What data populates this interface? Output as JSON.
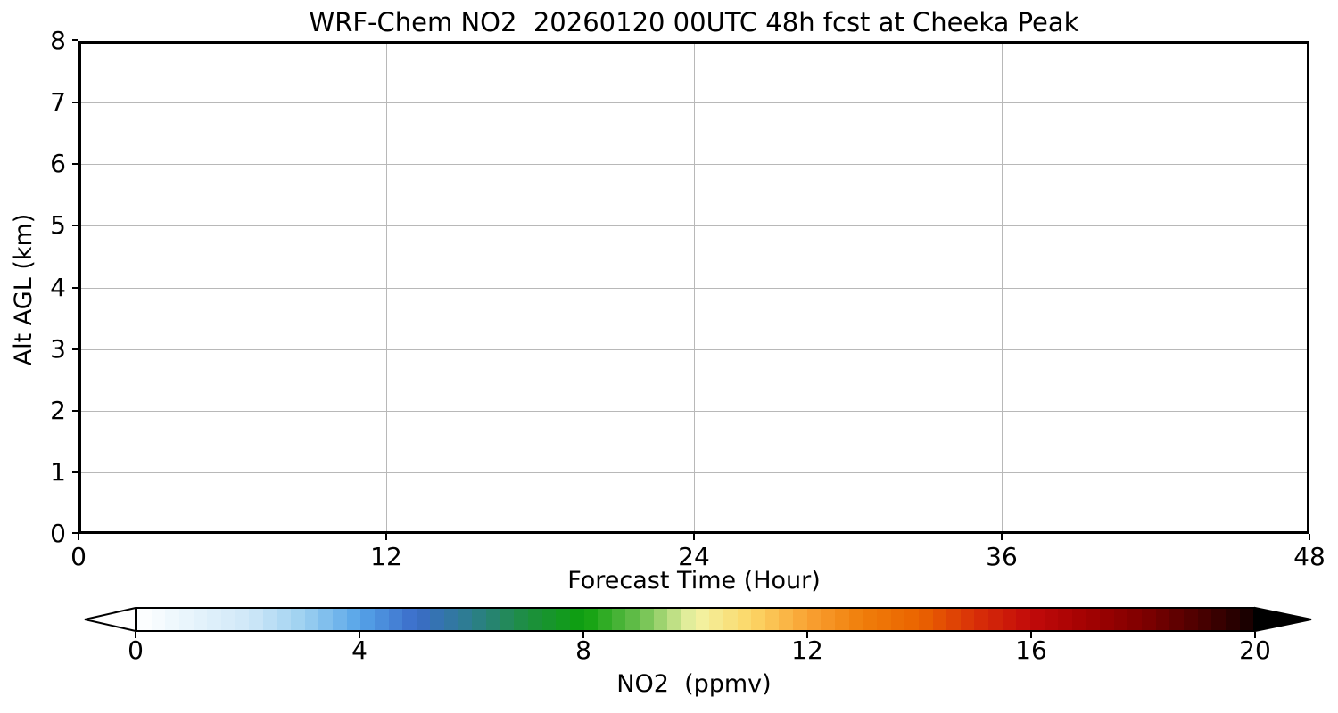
{
  "title": "WRF-Chem NO2  20260120 00UTC 48h fcst at Cheeka Peak",
  "axes": {
    "x": {
      "label": "Forecast Time (Hour)",
      "range": [
        0,
        48
      ],
      "ticks": [
        0,
        12,
        24,
        36,
        48
      ],
      "gridlines_at": [
        12,
        24,
        36
      ]
    },
    "y": {
      "label": "Alt AGL (km)",
      "range": [
        0,
        8
      ],
      "ticks": [
        0,
        1,
        2,
        3,
        4,
        5,
        6,
        7,
        8
      ],
      "gridlines_at": [
        1,
        2,
        3,
        4,
        5,
        6,
        7
      ]
    }
  },
  "colorbar": {
    "label": "NO2  (ppmv)",
    "range": [
      0,
      20
    ],
    "ticks": [
      0,
      4,
      8,
      12,
      16,
      20
    ],
    "segments": 80,
    "under_arrow_color": "#ffffff",
    "over_arrow_color": "#000000",
    "outline_color": "#000000",
    "stops": [
      [
        0,
        "#ffffff"
      ],
      [
        1,
        "#e6f3fb"
      ],
      [
        2,
        "#cfe8f8"
      ],
      [
        3,
        "#9cd0f0"
      ],
      [
        4,
        "#55a3e8"
      ],
      [
        5,
        "#3b6cc9"
      ],
      [
        6,
        "#2c7e8c"
      ],
      [
        7,
        "#1d8f3e"
      ],
      [
        8,
        "#0da00d"
      ],
      [
        9,
        "#6abf4e"
      ],
      [
        10,
        "#f2f4a6"
      ],
      [
        11,
        "#fcd666"
      ],
      [
        12,
        "#f9a233"
      ],
      [
        13,
        "#f07d0a"
      ],
      [
        14,
        "#ea6400"
      ],
      [
        15,
        "#d93008"
      ],
      [
        16,
        "#c20a0a"
      ],
      [
        17,
        "#a30202"
      ],
      [
        18,
        "#800000"
      ],
      [
        19,
        "#4d0000"
      ],
      [
        20,
        "#140000"
      ]
    ]
  },
  "plot_style": {
    "background": "#ffffff",
    "grid_color": "#b8b8b8",
    "spine_color": "#000000"
  },
  "chart_data": {
    "type": "heatmap",
    "title": "WRF-Chem NO2  20260120 00UTC 48h fcst at Cheeka Peak",
    "xlabel": "Forecast Time (Hour)",
    "ylabel": "Alt AGL (km)",
    "xlim": [
      0,
      48
    ],
    "ylim": [
      0,
      8
    ],
    "x_ticks": [
      0,
      12,
      24,
      36,
      48
    ],
    "y_ticks": [
      0,
      1,
      2,
      3,
      4,
      5,
      6,
      7,
      8
    ],
    "grid": true,
    "colorbar_label": "NO2  (ppmv)",
    "colorbar_ticks": [
      0,
      4,
      8,
      12,
      16,
      20
    ],
    "colorbar_range": [
      0,
      20
    ],
    "field_uniform_value": 0,
    "field_rendered_color": "#ffffff",
    "legend": "none"
  }
}
